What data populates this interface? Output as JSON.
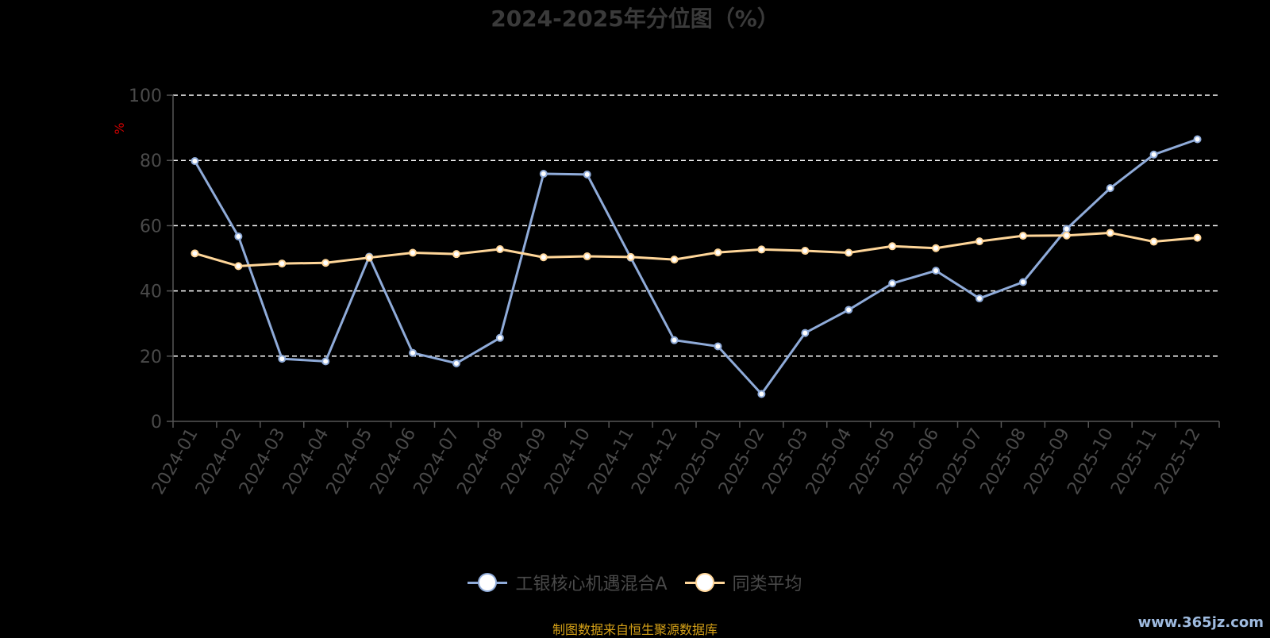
{
  "chart_data": {
    "type": "line",
    "title": "2024-2025年分位图（%）",
    "ylabel": "%",
    "ylim": [
      0,
      100
    ],
    "yticks": [
      0,
      20,
      40,
      60,
      80,
      100
    ],
    "grid": true,
    "legend_position": "bottom",
    "categories": [
      "2024-01",
      "2024-02",
      "2024-03",
      "2024-04",
      "2024-05",
      "2024-06",
      "2024-07",
      "2024-08",
      "2024-09",
      "2024-10",
      "2024-11",
      "2024-12",
      "2025-01",
      "2025-02",
      "2025-03",
      "2025-04",
      "2025-05",
      "2025-06",
      "2025-07",
      "2025-08",
      "2025-09",
      "2025-10",
      "2025-11",
      "2025-12"
    ],
    "series": [
      {
        "name": "工银核心机遇混合A",
        "color": "#8fabd9",
        "values": [
          79.8,
          56.7,
          19.2,
          18.4,
          50.5,
          21.0,
          17.8,
          25.6,
          75.9,
          75.7,
          50.2,
          24.9,
          23.0,
          8.4,
          27.1,
          34.2,
          42.3,
          46.2,
          37.7,
          42.7,
          59.0,
          71.5,
          81.8,
          86.5
        ]
      },
      {
        "name": "同类平均",
        "color": "#ffd699",
        "values": [
          51.5,
          47.6,
          48.4,
          48.6,
          50.2,
          51.7,
          51.3,
          52.8,
          50.3,
          50.6,
          50.4,
          49.6,
          51.8,
          52.7,
          52.3,
          51.7,
          53.7,
          53.1,
          55.2,
          56.9,
          57.0,
          57.8,
          55.1,
          56.3
        ]
      }
    ]
  },
  "footer": {
    "source": "制图数据来自恒生聚源数据库",
    "watermark": "www.365jz.com"
  }
}
